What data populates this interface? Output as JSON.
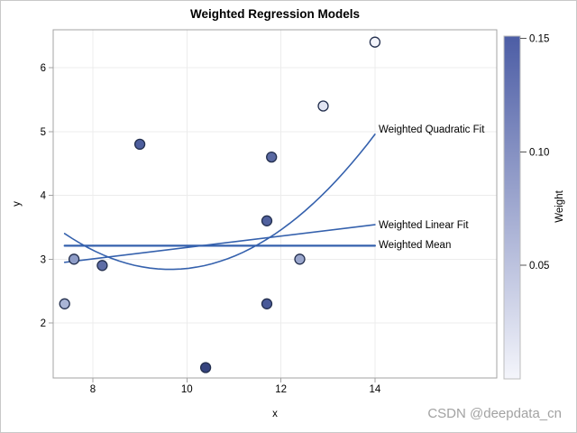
{
  "figure": {
    "watermark": "CSDN @deepdata_cn"
  },
  "chart_data": {
    "type": "scatter",
    "title": "Weighted Regression Models",
    "xlabel": "x",
    "ylabel": "y",
    "xlim": [
      7.157,
      16.59
    ],
    "ylim": [
      1.138,
      6.594
    ],
    "x_ticks": [
      8,
      10,
      12,
      14
    ],
    "y_ticks": [
      2,
      3,
      4,
      5,
      6
    ],
    "grid": true,
    "legend_position": "right",
    "points": [
      {
        "x": 7.4,
        "y": 2.3,
        "weight": 0.065,
        "fill": "#aab5d6"
      },
      {
        "x": 7.6,
        "y": 3.0,
        "weight": 0.09,
        "fill": "#8e9cc7"
      },
      {
        "x": 8.2,
        "y": 2.9,
        "weight": 0.13,
        "fill": "#5e6da6"
      },
      {
        "x": 9.0,
        "y": 4.8,
        "weight": 0.145,
        "fill": "#4d5e9d"
      },
      {
        "x": 10.4,
        "y": 1.3,
        "weight": 0.15,
        "fill": "#35437e"
      },
      {
        "x": 11.7,
        "y": 2.3,
        "weight": 0.148,
        "fill": "#4a5a99"
      },
      {
        "x": 11.7,
        "y": 3.6,
        "weight": 0.143,
        "fill": "#51619e"
      },
      {
        "x": 11.8,
        "y": 4.6,
        "weight": 0.135,
        "fill": "#5a69a2"
      },
      {
        "x": 12.4,
        "y": 3.0,
        "weight": 0.08,
        "fill": "#9aa6cc"
      },
      {
        "x": 12.9,
        "y": 5.4,
        "weight": 0.018,
        "fill": "#e2e5f2"
      },
      {
        "x": 14.0,
        "y": 6.4,
        "weight": 0.005,
        "fill": "#f4f5fb"
      }
    ],
    "series": [
      {
        "name": "Weighted Quadratic Fit",
        "type": "quadratic",
        "coeffs": {
          "a": 0.1115,
          "b": -2.1506,
          "c": 13.2095
        },
        "x_range": [
          7.4,
          14.0
        ],
        "label_y": 5.03,
        "stroke_width": 1.6
      },
      {
        "name": "Weighted Linear Fit",
        "type": "linear",
        "x_range": [
          7.4,
          14.0
        ],
        "y_start": 2.95,
        "y_end": 3.54,
        "label_y": 3.52,
        "stroke_width": 1.6
      },
      {
        "name": "Weighted Mean",
        "type": "constant",
        "value": 3.21,
        "x_range": [
          7.4,
          14.0
        ],
        "label_y": 3.21,
        "stroke_width": 2.2
      }
    ],
    "line_color": "#3561ad",
    "marker_outline": "#232f4e",
    "grid_color": "#ececec",
    "frame_color": "#a3a3a3",
    "legend": {
      "title": "Weight",
      "range": [
        0.0,
        0.151
      ],
      "ticks": [
        {
          "value": 0.15,
          "label": "0.15"
        },
        {
          "value": 0.1,
          "label": "0.10"
        },
        {
          "value": 0.05,
          "label": "0.05"
        }
      ],
      "color_high": "#4c5da5",
      "color_low": "#f4f5fb"
    }
  }
}
